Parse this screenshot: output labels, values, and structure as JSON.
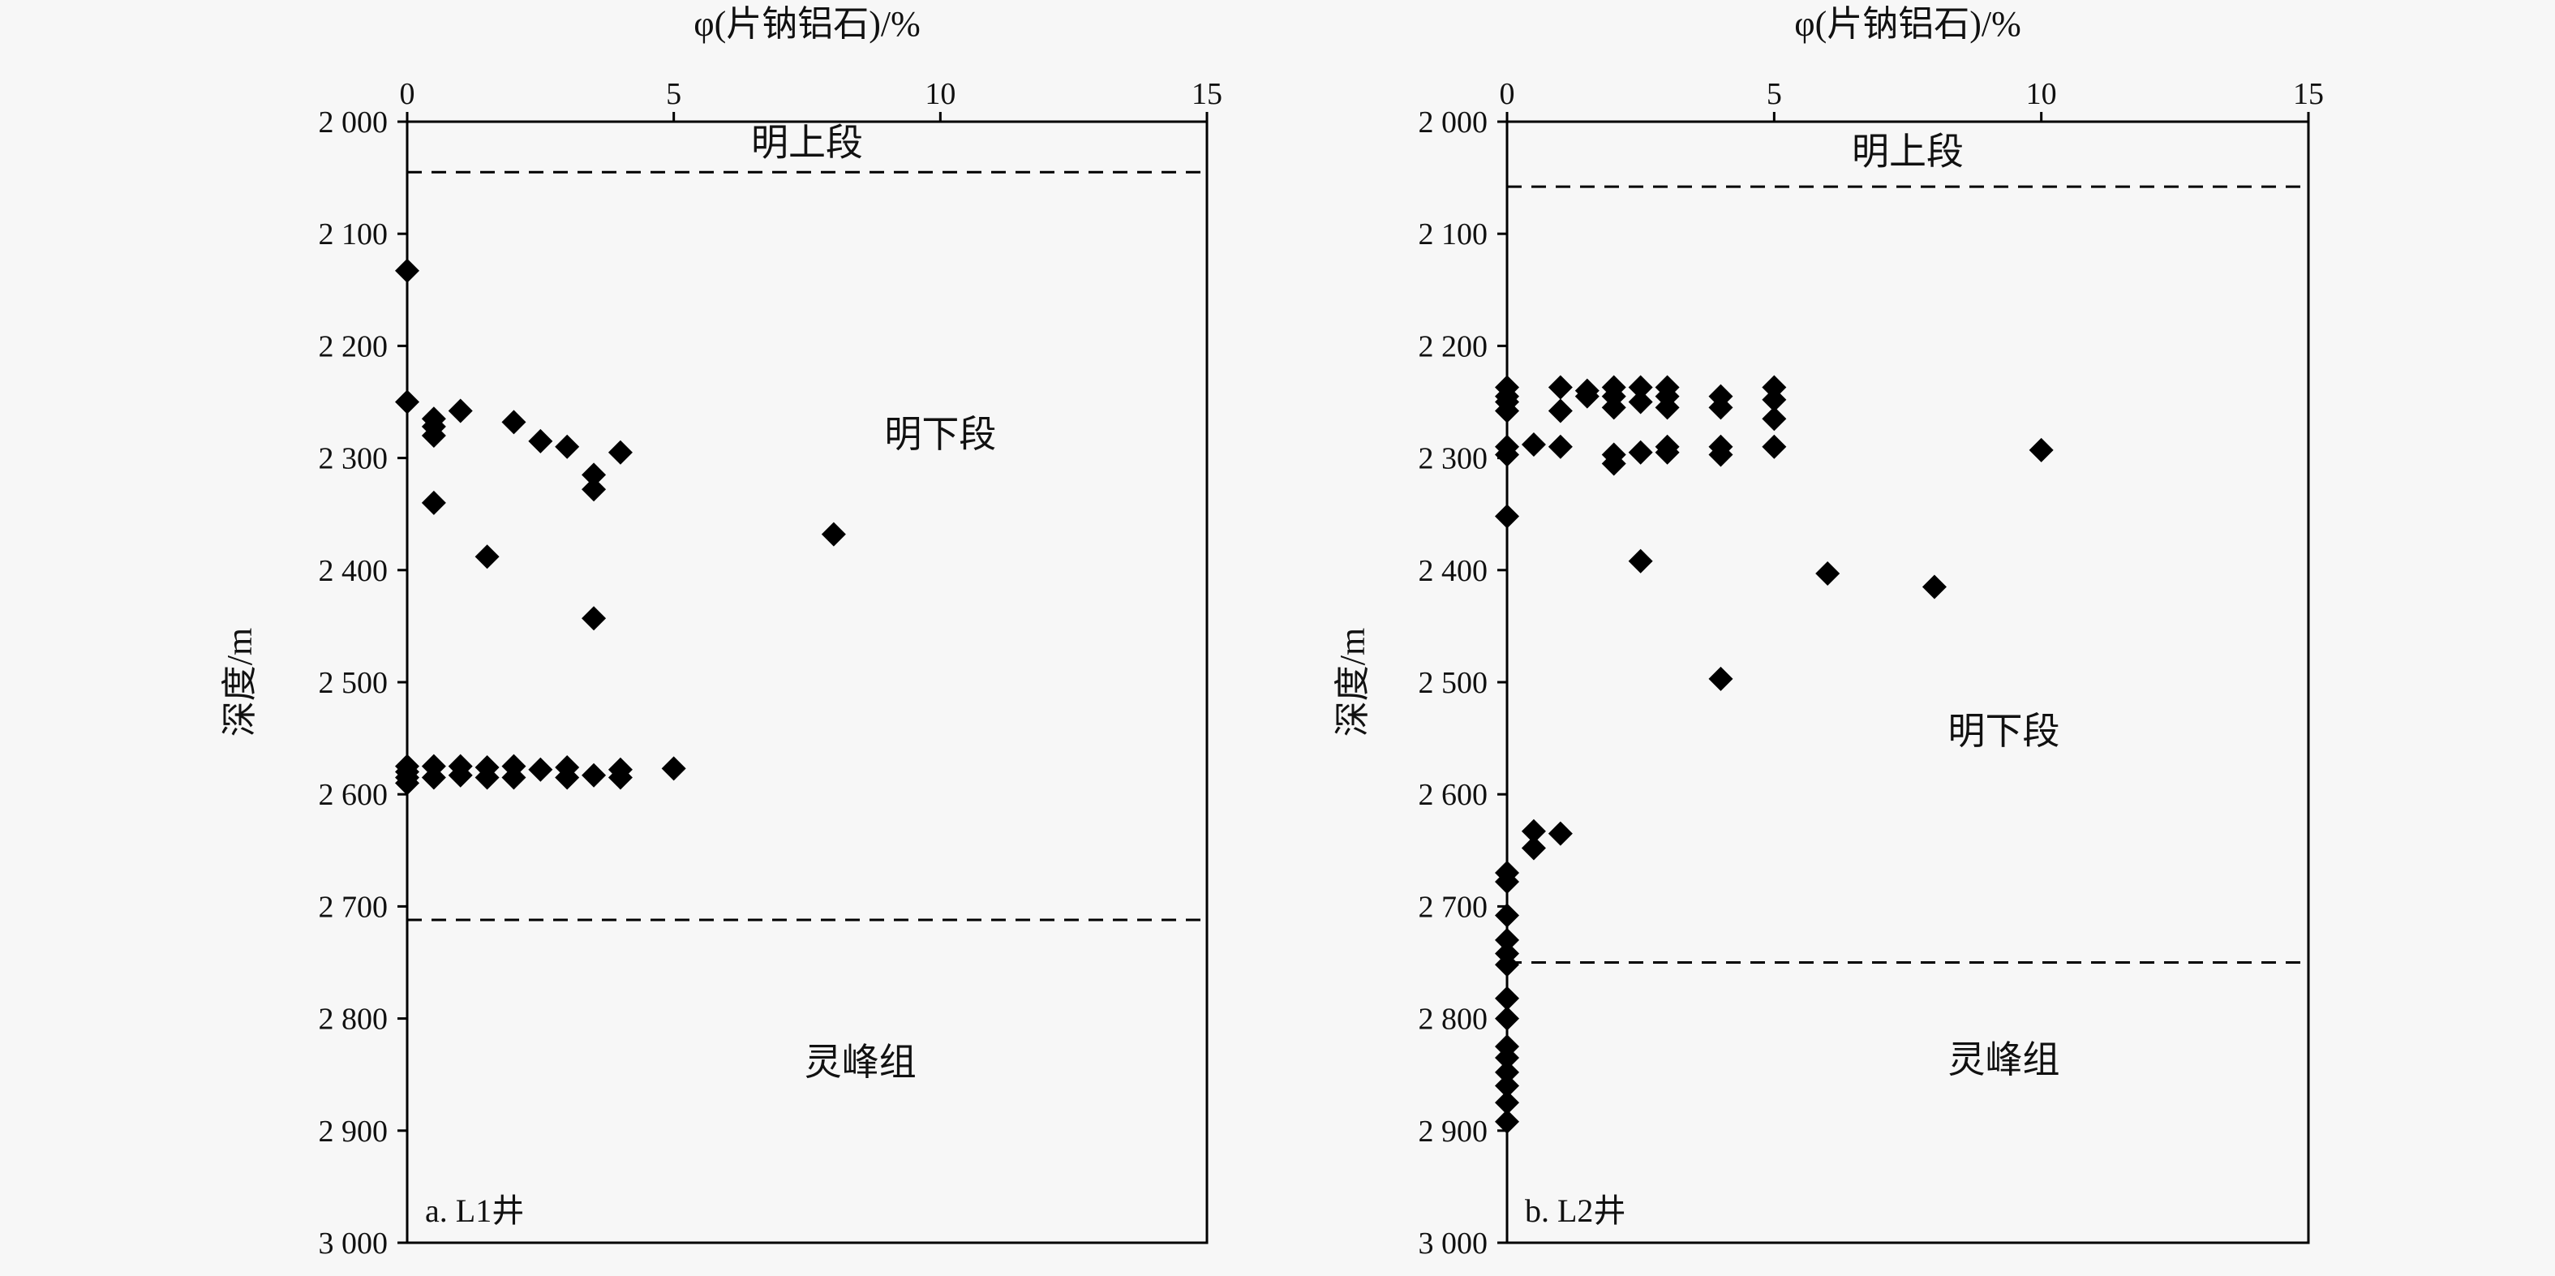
{
  "chart_data": [
    {
      "type": "scatter",
      "panel_label": "a. L1井",
      "xlabel": "φ(片钠铝石)/%",
      "ylabel": "深度/m",
      "xlim": [
        0,
        15
      ],
      "ylim": [
        2000,
        3000
      ],
      "y_inverted": true,
      "x_axis_position": "top",
      "x_ticks": [
        0,
        5,
        10,
        15
      ],
      "x_tick_labels": [
        "0",
        "5",
        "10",
        "15"
      ],
      "y_ticks": [
        2000,
        2100,
        2200,
        2300,
        2400,
        2500,
        2600,
        2700,
        2800,
        2900,
        3000
      ],
      "y_tick_labels": [
        "2 000",
        "2 100",
        "2 200",
        "2 300",
        "2 400",
        "2 500",
        "2 600",
        "2 700",
        "2 800",
        "2 900",
        "3 000"
      ],
      "boundaries": [
        2045,
        2712
      ],
      "zones": [
        {
          "label": "明上段",
          "x": 7.5,
          "y": 2020
        },
        {
          "label": "明下段",
          "x": 10,
          "y": 2280
        },
        {
          "label": "灵峰组",
          "x": 8.5,
          "y": 2840
        }
      ],
      "points": [
        [
          0,
          2133
        ],
        [
          0,
          2250
        ],
        [
          0.5,
          2265
        ],
        [
          0.5,
          2272
        ],
        [
          0.5,
          2280
        ],
        [
          1,
          2258
        ],
        [
          2,
          2268
        ],
        [
          2.5,
          2285
        ],
        [
          3,
          2290
        ],
        [
          3.5,
          2315
        ],
        [
          3.5,
          2328
        ],
        [
          4,
          2295
        ],
        [
          0.5,
          2340
        ],
        [
          1.5,
          2388
        ],
        [
          3.5,
          2443
        ],
        [
          8,
          2368
        ],
        [
          0,
          2575
        ],
        [
          0,
          2580
        ],
        [
          0,
          2585
        ],
        [
          0,
          2590
        ],
        [
          0.5,
          2575
        ],
        [
          0.5,
          2585
        ],
        [
          1,
          2575
        ],
        [
          1,
          2583
        ],
        [
          1.5,
          2576
        ],
        [
          1.5,
          2585
        ],
        [
          2,
          2575
        ],
        [
          2,
          2585
        ],
        [
          2.5,
          2578
        ],
        [
          3,
          2576
        ],
        [
          3,
          2585
        ],
        [
          3.5,
          2583
        ],
        [
          4,
          2578
        ],
        [
          4,
          2585
        ],
        [
          5,
          2577
        ]
      ]
    },
    {
      "type": "scatter",
      "panel_label": "b. L2井",
      "xlabel": "φ(片钠铝石)/%",
      "ylabel": "深度/m",
      "xlim": [
        0,
        15
      ],
      "ylim": [
        2000,
        3000
      ],
      "y_inverted": true,
      "x_axis_position": "top",
      "x_ticks": [
        0,
        5,
        10,
        15
      ],
      "x_tick_labels": [
        "0",
        "5",
        "10",
        "15"
      ],
      "y_ticks": [
        2000,
        2100,
        2200,
        2300,
        2400,
        2500,
        2600,
        2700,
        2800,
        2900,
        3000
      ],
      "y_tick_labels": [
        "2 000",
        "2 100",
        "2 200",
        "2 300",
        "2 400",
        "2 500",
        "2 600",
        "2 700",
        "2 800",
        "2 900",
        "3 000"
      ],
      "boundaries": [
        2058,
        2750
      ],
      "zones": [
        {
          "label": "明上段",
          "x": 7.5,
          "y": 2028
        },
        {
          "label": "明下段",
          "x": 9.3,
          "y": 2545
        },
        {
          "label": "灵峰组",
          "x": 9.3,
          "y": 2838
        }
      ],
      "points": [
        [
          0,
          2237
        ],
        [
          0,
          2245
        ],
        [
          0,
          2250
        ],
        [
          0,
          2258
        ],
        [
          1,
          2237
        ],
        [
          1,
          2258
        ],
        [
          1.5,
          2240
        ],
        [
          1.5,
          2245
        ],
        [
          2,
          2237
        ],
        [
          2,
          2245
        ],
        [
          2,
          2255
        ],
        [
          2.5,
          2237
        ],
        [
          2.5,
          2250
        ],
        [
          3,
          2237
        ],
        [
          3,
          2245
        ],
        [
          3,
          2255
        ],
        [
          4,
          2245
        ],
        [
          4,
          2255
        ],
        [
          5,
          2237
        ],
        [
          5,
          2248
        ],
        [
          5,
          2265
        ],
        [
          0,
          2290
        ],
        [
          0,
          2297
        ],
        [
          0.5,
          2288
        ],
        [
          1,
          2290
        ],
        [
          2,
          2297
        ],
        [
          2,
          2305
        ],
        [
          2.5,
          2295
        ],
        [
          3,
          2290
        ],
        [
          3,
          2295
        ],
        [
          4,
          2290
        ],
        [
          4,
          2297
        ],
        [
          5,
          2290
        ],
        [
          10,
          2293
        ],
        [
          0,
          2352
        ],
        [
          2.5,
          2392
        ],
        [
          6,
          2403
        ],
        [
          8,
          2415
        ],
        [
          4,
          2497
        ],
        [
          0.5,
          2633
        ],
        [
          0.5,
          2648
        ],
        [
          1,
          2635
        ],
        [
          0,
          2670
        ],
        [
          0,
          2678
        ],
        [
          0,
          2708
        ],
        [
          0,
          2730
        ],
        [
          0,
          2742
        ],
        [
          0,
          2752
        ],
        [
          0,
          2782
        ],
        [
          0,
          2800
        ],
        [
          0,
          2825
        ],
        [
          0,
          2835
        ],
        [
          0,
          2848
        ],
        [
          0,
          2860
        ],
        [
          0,
          2875
        ],
        [
          0,
          2892
        ]
      ]
    }
  ]
}
